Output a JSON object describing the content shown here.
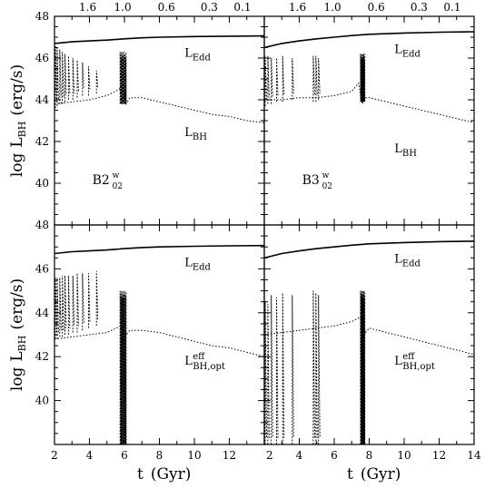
{
  "chart_data": {
    "type": "line",
    "layout": "2x2 grid of panels",
    "x_axis": {
      "label_text": "t",
      "label_unit": "(Gyr)",
      "range": [
        2,
        14
      ],
      "tick_labels": [
        "2",
        "4",
        "6",
        "8",
        "10",
        "12",
        "14"
      ],
      "top_axis_labels": [
        "1.6",
        "1.0",
        "0.6",
        "0.3",
        "0.1"
      ],
      "top_axis_positions_t": [
        3.9,
        5.9,
        8.4,
        10.85,
        12.75
      ]
    },
    "y_axis": {
      "label_log": "log",
      "label_L": "L",
      "label_sub": "BH",
      "label_unit": "(erg/s)",
      "range": [
        38,
        48
      ],
      "tick_labels": [
        "40",
        "42",
        "44",
        "46",
        "48"
      ]
    },
    "curve_labels": {
      "edd_main": "L",
      "edd_sub": "Edd",
      "bh_main": "L",
      "bh_sub": "BH",
      "eff_main": "L",
      "eff_sup": "eff",
      "eff_sub": "BH,opt"
    },
    "run_labels": [
      {
        "main": "B2",
        "sup": "w",
        "sub": "02"
      },
      {
        "main": "B3",
        "sup": "w",
        "sub": "02"
      }
    ],
    "panels": [
      {
        "id": "top-left",
        "run": "B2w02",
        "series": [
          {
            "name": "L_Edd",
            "style": "solid",
            "x": [
              2,
              3,
              4,
              5,
              6,
              7,
              8,
              10,
              12,
              14
            ],
            "y": [
              46.7,
              46.78,
              46.82,
              46.86,
              46.92,
              46.97,
              47.0,
              47.03,
              47.05,
              47.06
            ]
          },
          {
            "name": "L_BH",
            "style": "dotted",
            "x": [
              2,
              3,
              4,
              5,
              5.7,
              5.9,
              6.1,
              6.3,
              7,
              8,
              9,
              10,
              11,
              12,
              13,
              14
            ],
            "y": [
              43.8,
              43.9,
              44.0,
              44.2,
              44.5,
              44.9,
              43.8,
              44.1,
              44.1,
              43.9,
              43.7,
              43.5,
              43.3,
              43.2,
              43.0,
              42.9
            ]
          },
          {
            "name": "burst_spikes",
            "style": "dashed",
            "t": [
              2.05,
              2.15,
              2.3,
              2.45,
              2.6,
              2.8,
              3.05,
              3.3,
              3.6,
              3.95,
              4.4
            ],
            "peak": [
              46.6,
              46.5,
              46.4,
              46.3,
              46.2,
              46.1,
              46.0,
              45.9,
              45.8,
              45.6,
              45.4
            ],
            "base": [
              43.6,
              43.7,
              43.8,
              43.8,
              43.9,
              44.0,
              44.0,
              44.1,
              44.2,
              44.2,
              44.3
            ]
          },
          {
            "name": "merger_burst",
            "style": "dashed",
            "t_start": 5.75,
            "t_end": 6.1,
            "peak": 46.3,
            "base": 43.8
          }
        ]
      },
      {
        "id": "top-right",
        "run": "B3w02",
        "series": [
          {
            "name": "L_Edd",
            "style": "solid",
            "x": [
              2,
              3,
              4,
              5,
              6,
              7,
              8,
              10,
              12,
              14
            ],
            "y": [
              46.5,
              46.7,
              46.82,
              46.92,
              47.0,
              47.08,
              47.14,
              47.2,
              47.24,
              47.26
            ]
          },
          {
            "name": "L_BH",
            "style": "dotted",
            "x": [
              2,
              3,
              4,
              5,
              6,
              7,
              7.4,
              7.6,
              7.8,
              8,
              9,
              10,
              11,
              12,
              13,
              14
            ],
            "y": [
              44.0,
              44.0,
              44.1,
              44.1,
              44.2,
              44.4,
              44.8,
              43.8,
              44.1,
              44.1,
              43.9,
              43.7,
              43.5,
              43.3,
              43.1,
              42.9
            ]
          },
          {
            "name": "burst_spikes",
            "style": "dashed",
            "t": [
              2.05,
              2.2,
              2.4,
              2.7,
              3.05,
              3.6,
              4.8,
              4.95,
              5.1
            ],
            "peak": [
              46.1,
              46.1,
              46.0,
              46.0,
              46.1,
              46.0,
              46.1,
              46.1,
              46.0
            ],
            "base": [
              43.7,
              43.8,
              43.8,
              43.9,
              43.9,
              44.0,
              43.9,
              43.9,
              44.0
            ]
          },
          {
            "name": "merger_burst",
            "style": "dashed",
            "t_start": 7.5,
            "t_end": 7.75,
            "peak": 46.2,
            "base": 43.9
          }
        ]
      },
      {
        "id": "bottom-left",
        "run": "B2w02",
        "series": [
          {
            "name": "L_Edd",
            "style": "solid",
            "x": [
              2,
              3,
              4,
              5,
              6,
              7,
              8,
              10,
              12,
              14
            ],
            "y": [
              46.7,
              46.78,
              46.82,
              46.86,
              46.92,
              46.97,
              47.0,
              47.03,
              47.05,
              47.06
            ]
          },
          {
            "name": "L_BH_eff_opt",
            "style": "dotted",
            "x": [
              2,
              3,
              4,
              5,
              5.8,
              6.1,
              6.3,
              7,
              8,
              9,
              10,
              11,
              12,
              13,
              14
            ],
            "y": [
              42.8,
              42.9,
              43.0,
              43.1,
              43.4,
              43.0,
              43.2,
              43.2,
              43.1,
              42.9,
              42.7,
              42.5,
              42.4,
              42.2,
              42.0
            ]
          },
          {
            "name": "burst_spikes",
            "style": "dashed",
            "t": [
              2.05,
              2.15,
              2.3,
              2.45,
              2.6,
              2.8,
              3.05,
              3.3,
              3.6,
              3.95,
              4.4
            ],
            "peak": [
              45.6,
              45.6,
              45.6,
              45.7,
              45.7,
              45.7,
              45.7,
              45.8,
              45.8,
              45.8,
              45.9
            ],
            "base": [
              42.8,
              42.8,
              42.9,
              42.9,
              43.0,
              43.0,
              43.1,
              43.1,
              43.2,
              43.3,
              43.4
            ]
          },
          {
            "name": "merger_burst",
            "style": "dashed",
            "t_start": 5.75,
            "t_end": 6.1,
            "peak": 45.0,
            "base": 38.0
          }
        ]
      },
      {
        "id": "bottom-right",
        "run": "B3w02",
        "series": [
          {
            "name": "L_Edd",
            "style": "solid",
            "x": [
              2,
              3,
              4,
              5,
              6,
              7,
              8,
              10,
              12,
              14
            ],
            "y": [
              46.5,
              46.7,
              46.82,
              46.92,
              47.0,
              47.08,
              47.14,
              47.2,
              47.24,
              47.26
            ]
          },
          {
            "name": "L_BH_eff_opt",
            "style": "dotted",
            "x": [
              2,
              3,
              4,
              5,
              6,
              7,
              7.5,
              7.8,
              8,
              9,
              10,
              11,
              12,
              13,
              14
            ],
            "y": [
              43.0,
              43.1,
              43.2,
              43.3,
              43.4,
              43.6,
              43.8,
              43.1,
              43.3,
              43.1,
              42.9,
              42.7,
              42.5,
              42.3,
              42.1
            ]
          },
          {
            "name": "burst_spikes",
            "style": "dashed",
            "t": [
              2.05,
              2.2,
              2.4,
              2.7,
              3.05,
              3.6,
              4.8,
              4.95,
              5.1
            ],
            "peak": [
              44.5,
              44.4,
              44.8,
              44.7,
              44.9,
              44.8,
              45.0,
              44.9,
              44.8
            ],
            "base": [
              38.0,
              38.0,
              38.0,
              38.0,
              38.0,
              38.0,
              38.0,
              38.0,
              38.0
            ]
          },
          {
            "name": "merger_burst",
            "style": "dashed",
            "t_start": 7.5,
            "t_end": 7.75,
            "peak": 45.0,
            "base": 38.0
          }
        ]
      }
    ]
  }
}
